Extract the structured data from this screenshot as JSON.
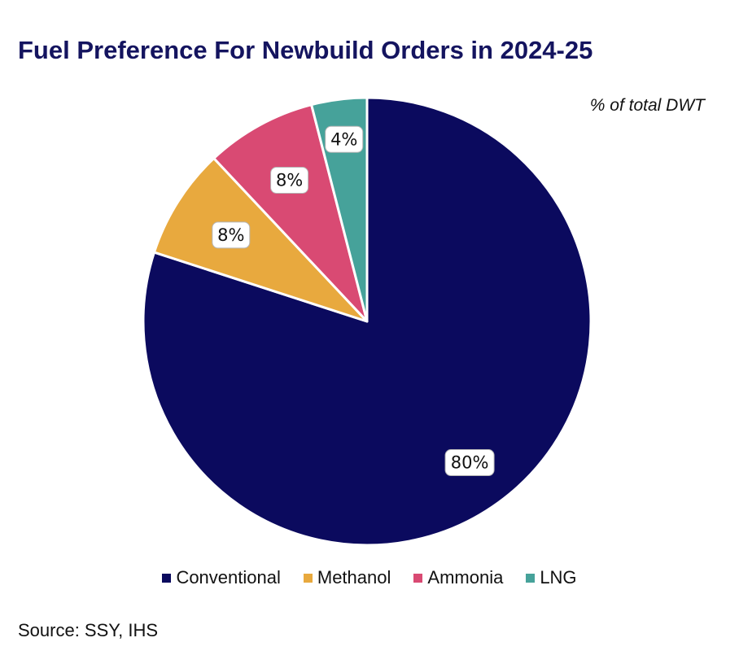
{
  "chart_data": {
    "type": "pie",
    "title": "Fuel Preference For Newbuild Orders in 2024-25",
    "subtitle": "% of total DWT",
    "categories": [
      "Conventional",
      "Methanol",
      "Ammonia",
      "LNG"
    ],
    "values": [
      80,
      8,
      8,
      4
    ],
    "value_labels": [
      "80%",
      "8%",
      "8%",
      "4%"
    ],
    "colors": [
      "#0b0a5e",
      "#e8a93e",
      "#d94a73",
      "#46a29a"
    ],
    "start_angle": "12 o'clock",
    "direction": "clockwise",
    "legend_position": "bottom",
    "source": "Source: SSY, IHS"
  }
}
